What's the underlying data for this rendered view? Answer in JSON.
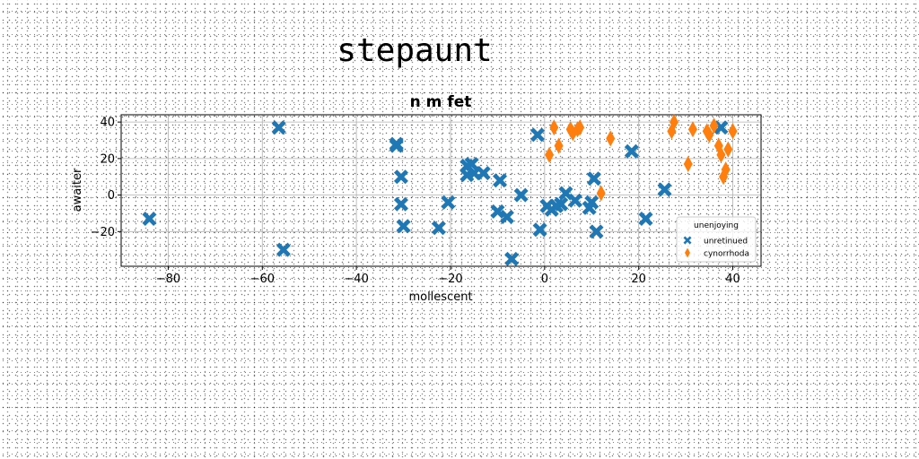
{
  "figure_title": "stepaunt",
  "chart_data": {
    "type": "scatter",
    "title": "n m fet",
    "xlabel": "mollescent",
    "ylabel": "awaiter",
    "xlim": [
      -90,
      46
    ],
    "ylim": [
      -39,
      44
    ],
    "xticks": [
      -80,
      -60,
      -40,
      -20,
      0,
      20,
      40
    ],
    "yticks": [
      -20,
      0,
      20,
      40
    ],
    "grid": true,
    "legend": {
      "title": "unenjoying",
      "placement": "lower-right"
    },
    "series": [
      {
        "name": "unretinued",
        "color": "#1f77b4",
        "marker": "x",
        "points": [
          [
            -84,
            -13
          ],
          [
            -56.5,
            37
          ],
          [
            -55.5,
            -30
          ],
          [
            -31.5,
            28
          ],
          [
            -31.5,
            27
          ],
          [
            -30.5,
            10
          ],
          [
            -30.5,
            -5
          ],
          [
            -30,
            -17
          ],
          [
            -22.5,
            -18
          ],
          [
            -20.5,
            -4
          ],
          [
            -16.5,
            16
          ],
          [
            -16.5,
            11
          ],
          [
            -15.5,
            17
          ],
          [
            -15,
            12
          ],
          [
            -13,
            12
          ],
          [
            -9.5,
            8
          ],
          [
            -10,
            -9
          ],
          [
            -8,
            -12
          ],
          [
            -7,
            -35
          ],
          [
            -5,
            0
          ],
          [
            -1.5,
            33
          ],
          [
            -1,
            -19
          ],
          [
            0.5,
            -6
          ],
          [
            1.5,
            -8
          ],
          [
            2.5,
            -6
          ],
          [
            3.5,
            -5
          ],
          [
            4.5,
            1
          ],
          [
            6.5,
            -3
          ],
          [
            9.5,
            -7
          ],
          [
            10,
            -4
          ],
          [
            10.5,
            9
          ],
          [
            11,
            -20
          ],
          [
            18.5,
            24
          ],
          [
            21.5,
            -13
          ],
          [
            25.5,
            3
          ],
          [
            37.5,
            37
          ]
        ]
      },
      {
        "name": "cynorrhoda",
        "color": "#ff7f0e",
        "marker": "d",
        "points": [
          [
            1,
            22
          ],
          [
            2,
            37
          ],
          [
            3,
            27
          ],
          [
            5.5,
            36
          ],
          [
            6,
            34
          ],
          [
            7,
            36
          ],
          [
            7.5,
            37
          ],
          [
            14,
            31
          ],
          [
            12,
            1
          ],
          [
            27,
            35
          ],
          [
            27.5,
            40
          ],
          [
            30.5,
            17
          ],
          [
            31.5,
            36
          ],
          [
            34.5,
            35
          ],
          [
            35,
            33
          ],
          [
            36,
            38
          ],
          [
            37,
            27
          ],
          [
            37.5,
            22
          ],
          [
            38,
            10
          ],
          [
            38.5,
            14
          ],
          [
            39,
            25
          ],
          [
            40,
            35
          ]
        ]
      }
    ]
  }
}
